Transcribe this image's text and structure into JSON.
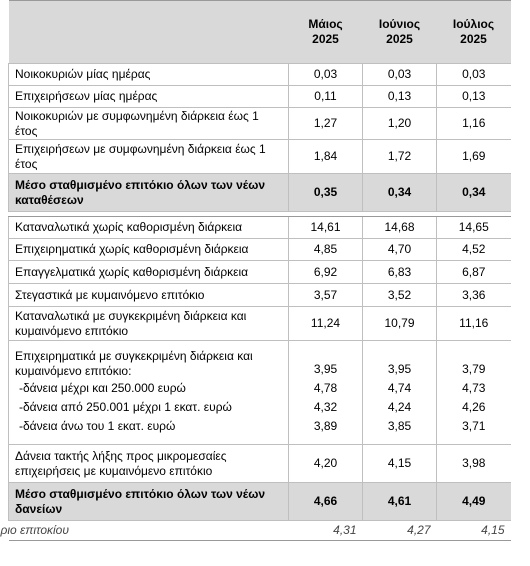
{
  "table": {
    "header": [
      "Μάιος 2025",
      "Ιούνιος 2025",
      "Ιούλιος 2025"
    ],
    "rows": [
      {
        "label": "Νοικοκυριών μίας ημέρας",
        "values": [
          "0,03",
          "0,03",
          "0,03"
        ]
      },
      {
        "label": "Επιχειρήσεων μίας ημέρας",
        "values": [
          "0,11",
          "0,13",
          "0,13"
        ]
      },
      {
        "label": "Νοικοκυριών με συμφωνημένη διάρκεια έως 1 έτος",
        "values": [
          "1,27",
          "1,20",
          "1,16"
        ]
      },
      {
        "label": "Επιχειρήσεων με συμφωνημένη διάρκεια έως 1 έτος",
        "values": [
          "1,84",
          "1,72",
          "1,69"
        ]
      },
      {
        "label": "Μέσο σταθμισμένο επιτόκιο όλων των νέων καταθέσεων",
        "values": [
          "0,35",
          "0,34",
          "0,34"
        ]
      },
      {
        "label": "Καταναλωτικά χωρίς καθορισμένη διάρκεια",
        "values": [
          "14,61",
          "14,68",
          "14,65"
        ]
      },
      {
        "label": "Επιχειρηματικά χωρίς καθορισμένη διάρκεια",
        "values": [
          "4,85",
          "4,70",
          "4,52"
        ]
      },
      {
        "label": "Επαγγελματικά χωρίς καθορισμένη διάρκεια",
        "values": [
          "6,92",
          "6,83",
          "6,87"
        ]
      },
      {
        "label": "Στεγαστικά με κυμαινόμενο επιτόκιο",
        "values": [
          "3,57",
          "3,52",
          "3,36"
        ]
      },
      {
        "label": "Καταναλωτικά με συγκεκριμένη διάρκεια και κυμαινόμενο επιτόκιο",
        "values": [
          "11,24",
          "10,79",
          "11,16"
        ]
      },
      {
        "label": "Επιχειρηματικά με συγκεκριμένη διάρκεια και κυμαινόμενο επιτόκιο:",
        "values": [
          "3,95",
          "3,95",
          "3,79"
        ],
        "items": [
          {
            "label": "-δάνεια μέχρι και 250.000 ευρώ",
            "values": [
              "4,78",
              "4,74",
              "4,73"
            ]
          },
          {
            "label": "-δάνεια από 250.001 μέχρι 1 εκατ. ευρώ",
            "values": [
              "4,32",
              "4,24",
              "4,26"
            ]
          },
          {
            "label": "-δάνεια άνω του 1 εκατ. ευρώ",
            "values": [
              "3,89",
              "3,85",
              "3,71"
            ]
          }
        ]
      },
      {
        "label": "Δάνεια τακτής λήξης προς μικρομεσαίες επιχειρήσεις με κυμαινόμενο επιτόκιο",
        "values": [
          "4,20",
          "4,15",
          "3,98"
        ]
      },
      {
        "label": "Μέσο σταθμισμένο επιτόκιο όλων των νέων δανείων",
        "values": [
          "4,66",
          "4,61",
          "4,49"
        ]
      },
      {
        "label": "ριο επιτοκίου",
        "values": [
          "4,31",
          "4,27",
          "4,15"
        ]
      }
    ]
  }
}
